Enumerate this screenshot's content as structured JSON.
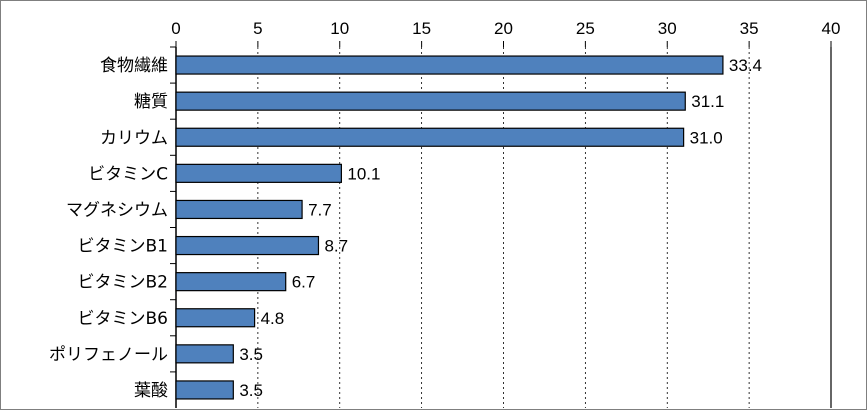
{
  "chart_data": {
    "type": "bar",
    "orientation": "horizontal",
    "categories": [
      "食物繊維",
      "糖質",
      "カリウム",
      "ビタミンC",
      "マグネシウム",
      "ビタミンB1",
      "ビタミンB2",
      "ビタミンB6",
      "ポリフェノール",
      "葉酸"
    ],
    "values": [
      33.4,
      31.1,
      31.0,
      10.1,
      7.7,
      8.7,
      6.7,
      4.8,
      3.5,
      3.5
    ],
    "data_labels": [
      "33.4",
      "31.1",
      "31.0",
      "10.1",
      "7.7",
      "8.7",
      "6.7",
      "4.8",
      "3.5",
      "3.5"
    ],
    "xlim": [
      0,
      40
    ],
    "xticks": [
      0,
      5,
      10,
      15,
      20,
      25,
      30,
      35,
      40
    ],
    "x_axis_position": "top",
    "grid": "vertical dashed",
    "legend": "none",
    "colors": {
      "bar_fill": "#4f81bd",
      "bar_stroke": "#000000",
      "grid": "#000000"
    }
  }
}
